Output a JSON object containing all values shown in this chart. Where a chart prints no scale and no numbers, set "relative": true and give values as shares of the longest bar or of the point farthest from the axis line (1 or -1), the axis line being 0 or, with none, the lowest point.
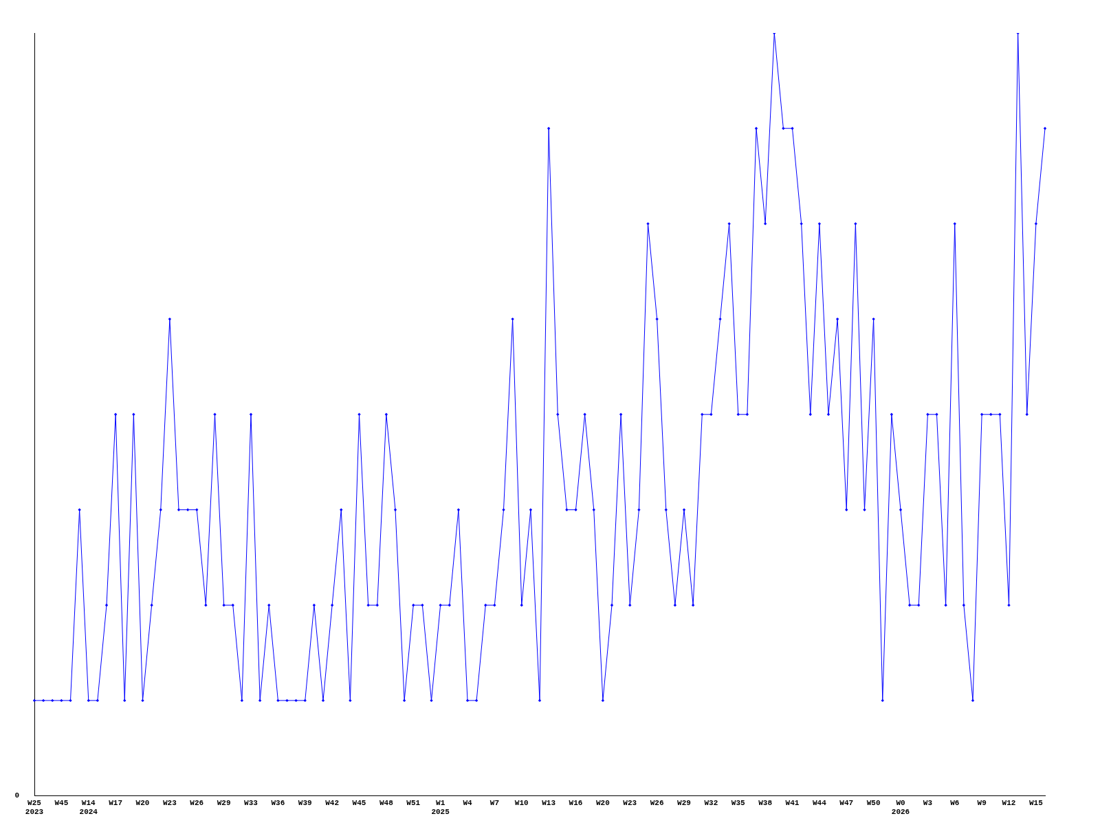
{
  "chart_data": {
    "type": "line",
    "relative": true,
    "marker": "diamond",
    "grid": false,
    "legend": false,
    "categories": [
      "W25\n2023",
      null,
      null,
      "W45",
      null,
      null,
      "W14\n2024",
      null,
      null,
      "W17",
      null,
      null,
      "W20",
      null,
      null,
      "W23",
      null,
      null,
      "W26",
      null,
      null,
      "W29",
      null,
      null,
      "W33",
      null,
      null,
      "W36",
      null,
      null,
      "W39",
      null,
      null,
      "W42",
      null,
      null,
      "W45",
      null,
      null,
      "W48",
      null,
      null,
      "W51",
      null,
      null,
      "W1\n2025",
      null,
      null,
      "W4",
      null,
      null,
      "W7",
      null,
      null,
      "W10",
      null,
      null,
      "W13",
      null,
      null,
      "W16",
      null,
      null,
      "W20",
      null,
      null,
      "W23",
      null,
      null,
      "W26",
      null,
      null,
      "W29",
      null,
      null,
      "W32",
      null,
      null,
      "W35",
      null,
      null,
      "W38",
      null,
      null,
      "W41",
      null,
      null,
      "W44",
      null,
      null,
      "W47",
      null,
      null,
      "W50",
      null,
      null,
      "W0\n2026",
      null,
      null,
      "W3",
      null,
      null,
      "W6",
      null,
      null,
      "W9",
      null,
      null,
      "W12",
      null,
      null,
      "W15",
      null
    ],
    "series": [
      {
        "color": "#0000ff",
        "values": [
          0.125,
          0.125,
          0.125,
          0.125,
          0.125,
          0.375,
          0.125,
          0.125,
          0.25,
          0.5,
          0.125,
          0.5,
          0.125,
          0.25,
          0.375,
          0.625,
          0.375,
          0.375,
          0.375,
          0.25,
          0.5,
          0.25,
          0.25,
          0.125,
          0.5,
          0.125,
          0.25,
          0.125,
          0.125,
          0.125,
          0.125,
          0.25,
          0.125,
          0.25,
          0.375,
          0.125,
          0.5,
          0.25,
          0.25,
          0.5,
          0.375,
          0.125,
          0.25,
          0.25,
          0.125,
          0.25,
          0.25,
          0.375,
          0.125,
          0.125,
          0.25,
          0.25,
          0.375,
          0.625,
          0.25,
          0.375,
          0.125,
          0.875,
          0.5,
          0.375,
          0.375,
          0.5,
          0.375,
          0.125,
          0.25,
          0.5,
          0.25,
          0.375,
          0.75,
          0.625,
          0.375,
          0.25,
          0.375,
          0.25,
          0.5,
          0.5,
          0.625,
          0.75,
          0.5,
          0.5,
          0.875,
          0.75,
          1,
          0.875,
          0.875,
          0.75,
          0.5,
          0.75,
          0.5,
          0.625,
          0.375,
          0.75,
          0.375,
          0.625,
          0.125,
          0.5,
          0.375,
          0.25,
          0.25,
          0.5,
          0.5,
          0.25,
          0.75,
          0.25,
          0.125,
          0.5,
          0.5,
          0.5,
          0.25,
          1,
          0.5,
          0.75,
          0.875
        ]
      }
    ],
    "annotations": [
      "0"
    ]
  }
}
